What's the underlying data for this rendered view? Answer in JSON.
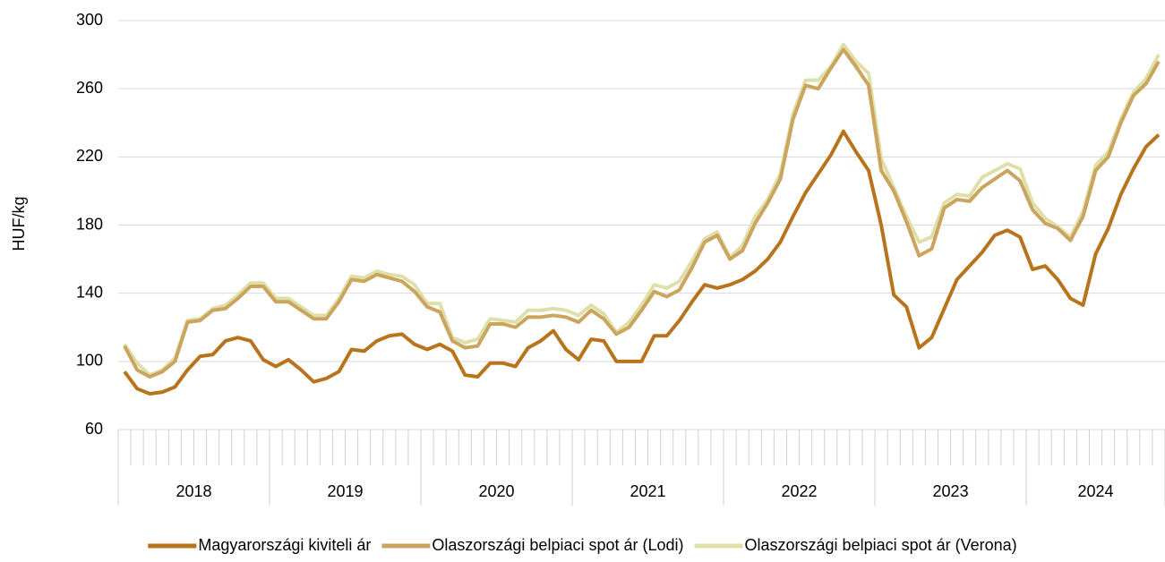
{
  "chart_data": {
    "type": "line",
    "y_label": "HUF/kg",
    "categories": [
      "2018",
      null,
      null,
      null,
      null,
      null,
      null,
      null,
      null,
      null,
      null,
      null,
      "2019",
      null,
      null,
      null,
      null,
      null,
      null,
      null,
      null,
      null,
      null,
      null,
      "2020",
      null,
      null,
      null,
      null,
      null,
      null,
      null,
      null,
      null,
      null,
      null,
      "2021",
      null,
      null,
      null,
      null,
      null,
      null,
      null,
      null,
      null,
      null,
      null,
      "2022",
      null,
      null,
      null,
      null,
      null,
      null,
      null,
      null,
      null,
      null,
      null,
      "2023",
      null,
      null,
      null,
      null,
      null,
      null,
      null,
      null,
      null,
      null,
      null,
      "2024",
      null,
      null,
      null,
      null,
      null,
      null,
      null,
      null,
      null,
      null
    ],
    "series": [
      {
        "name": "Magyarországi kiviteli ár",
        "color": "#b8741c",
        "values": [
          94,
          84,
          81,
          82,
          85,
          95,
          103,
          104,
          112,
          114,
          112,
          101,
          97,
          101,
          95,
          88,
          90,
          94,
          107,
          106,
          112,
          115,
          116,
          110,
          107,
          110,
          106,
          92,
          91,
          99,
          99,
          97,
          108,
          112,
          118,
          107,
          101,
          113,
          112,
          100,
          100,
          100,
          115,
          115,
          124,
          135,
          145,
          143,
          145,
          148,
          153,
          160,
          170,
          185,
          199,
          210,
          221,
          235,
          223,
          212,
          180,
          139,
          132,
          108,
          114,
          131,
          148,
          156,
          164,
          174,
          177,
          173,
          154,
          156,
          148,
          137,
          133,
          163,
          178,
          198,
          213,
          226,
          233
        ]
      },
      {
        "name": "Olaszországi belpiaci spot ár (Lodi)",
        "color": "#cba45e",
        "values": [
          109,
          95,
          91,
          94,
          100,
          123,
          124,
          130,
          131,
          137,
          144,
          144,
          135,
          135,
          130,
          125,
          125,
          135,
          148,
          147,
          151,
          149,
          147,
          141,
          132,
          129,
          112,
          108,
          109,
          122,
          122,
          120,
          126,
          126,
          127,
          126,
          123,
          130,
          125,
          116,
          120,
          130,
          141,
          138,
          142,
          155,
          170,
          174,
          160,
          165,
          181,
          193,
          207,
          242,
          262,
          260,
          272,
          283,
          273,
          262,
          212,
          200,
          182,
          162,
          166,
          190,
          195,
          194,
          202,
          207,
          212,
          206,
          189,
          181,
          178,
          171,
          185,
          212,
          220,
          240,
          256,
          263,
          276
        ]
      },
      {
        "name": "Olaszországi belpiaci spot ár (Verona)",
        "color": "#dfe0a9",
        "values": [
          110,
          99,
          92,
          95,
          102,
          124,
          125,
          131,
          133,
          139,
          146,
          146,
          137,
          137,
          132,
          127,
          127,
          137,
          150,
          149,
          153,
          151,
          150,
          145,
          134,
          134,
          114,
          111,
          113,
          125,
          124,
          123,
          130,
          130,
          131,
          130,
          127,
          133,
          128,
          117,
          123,
          133,
          145,
          143,
          147,
          159,
          172,
          176,
          161,
          168,
          185,
          195,
          210,
          245,
          265,
          265,
          273,
          286,
          276,
          269,
          219,
          202,
          185,
          170,
          173,
          193,
          198,
          197,
          208,
          212,
          216,
          213,
          193,
          184,
          179,
          173,
          188,
          215,
          223,
          242,
          258,
          266,
          280
        ]
      }
    ],
    "ylim": [
      60,
      300
    ],
    "yticks": [
      60,
      100,
      140,
      180,
      220,
      260,
      300
    ],
    "grid": true,
    "legend": "bottom"
  }
}
